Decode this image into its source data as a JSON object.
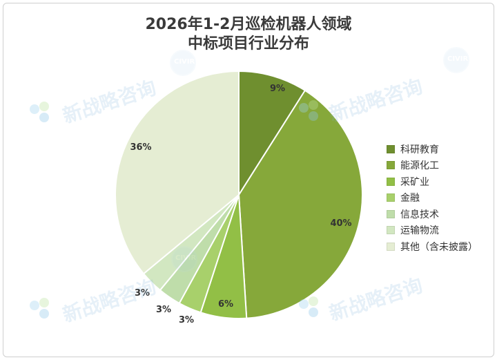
{
  "title": {
    "line1": "2026年1-2月巡检机器人领域",
    "line2": "中标项目行业分布"
  },
  "watermark": {
    "text": "新战略咨询",
    "badge": "CIVIR"
  },
  "chart_data": {
    "type": "pie",
    "title": "2026年1-2月巡检机器人领域中标项目行业分布",
    "categories": [
      "科研教育",
      "能源化工",
      "采矿业",
      "金融",
      "信息技术",
      "运输物流",
      "其他（含未披露）"
    ],
    "values": [
      9,
      40,
      6,
      3,
      3,
      3,
      36
    ],
    "labels": [
      "9%",
      "40%",
      "6%",
      "3%",
      "3%",
      "3%",
      "36%"
    ],
    "colors": [
      "#6f8f2f",
      "#86a83a",
      "#92bf46",
      "#a8d06b",
      "#bfddaa",
      "#d2e7c1",
      "#e5edd3"
    ],
    "legend_position": "right"
  }
}
